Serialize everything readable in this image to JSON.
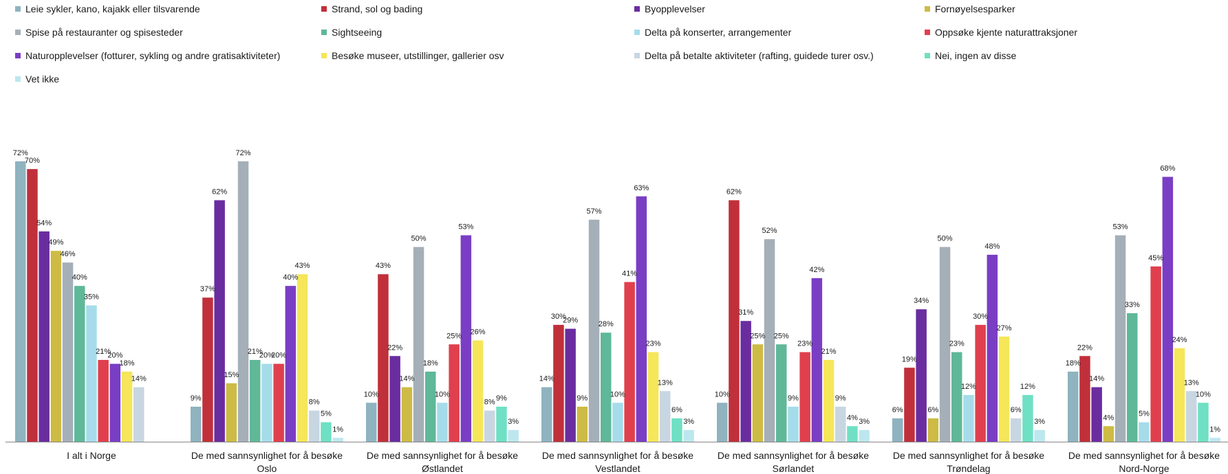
{
  "chart_data": {
    "type": "bar",
    "title": "",
    "xlabel": "",
    "ylabel": "",
    "ylim": [
      0,
      80
    ],
    "grid": false,
    "legend_position": "top",
    "categories": [
      [
        "I alt i Norge"
      ],
      [
        "De med sannsynlighet for å besøke",
        "Oslo"
      ],
      [
        "De med sannsynlighet for å besøke",
        "Østlandet"
      ],
      [
        "De med sannsynlighet for å besøke",
        "Vestlandet"
      ],
      [
        "De med sannsynlighet for å besøke",
        "Sørlandet"
      ],
      [
        "De med sannsynlighet for å besøke",
        "Trøndelag"
      ],
      [
        "De med sannsynlighet for å besøke",
        "Nord-Norge"
      ]
    ],
    "series": [
      {
        "name": "Leie sykler, kano, kajakk eller tilsvarende",
        "color": "#8fb3bf",
        "values": [
          72,
          9,
          10,
          14,
          10,
          6,
          18
        ]
      },
      {
        "name": "Strand, sol og bading",
        "color": "#c0303a",
        "values": [
          70,
          37,
          43,
          30,
          62,
          19,
          22
        ]
      },
      {
        "name": "Byopplevelser",
        "color": "#6a2da0",
        "values": [
          54,
          62,
          22,
          29,
          31,
          34,
          14
        ]
      },
      {
        "name": "Fornøyelsesparker",
        "color": "#cdbb45",
        "values": [
          49,
          15,
          14,
          9,
          25,
          6,
          4
        ]
      },
      {
        "name": "Spise på restauranter og spisesteder",
        "color": "#a5afb8",
        "values": [
          46,
          72,
          50,
          57,
          52,
          50,
          53
        ]
      },
      {
        "name": "Sightseeing",
        "color": "#5fb898",
        "values": [
          40,
          21,
          18,
          28,
          25,
          23,
          33
        ]
      },
      {
        "name": "Delta på konserter, arrangementer",
        "color": "#a6dcea",
        "values": [
          35,
          20,
          10,
          10,
          9,
          12,
          5
        ]
      },
      {
        "name": "Oppsøke kjente naturattraksjoner",
        "color": "#e0404e",
        "values": [
          21,
          20,
          25,
          41,
          23,
          30,
          45
        ]
      },
      {
        "name": "Naturopplevelser (fotturer, sykling og andre gratisaktiviteter)",
        "color": "#7a3ec4",
        "values": [
          20,
          40,
          53,
          63,
          42,
          48,
          68
        ]
      },
      {
        "name": "Besøke museer, utstillinger, gallerier osv",
        "color": "#f5e65a",
        "values": [
          18,
          43,
          26,
          23,
          21,
          27,
          24
        ]
      },
      {
        "name": "Delta på betalte aktiviteter (rafting, guidede turer osv.)",
        "color": "#c8d6e2",
        "values": [
          14,
          8,
          8,
          13,
          9,
          6,
          13
        ]
      },
      {
        "name": "Nei, ingen av disse",
        "color": "#6fe0c4",
        "values": [
          null,
          5,
          9,
          6,
          4,
          12,
          10
        ]
      },
      {
        "name": "Vet ikke",
        "color": "#bde7ef",
        "values": [
          null,
          1,
          3,
          3,
          3,
          3,
          1
        ]
      }
    ]
  }
}
